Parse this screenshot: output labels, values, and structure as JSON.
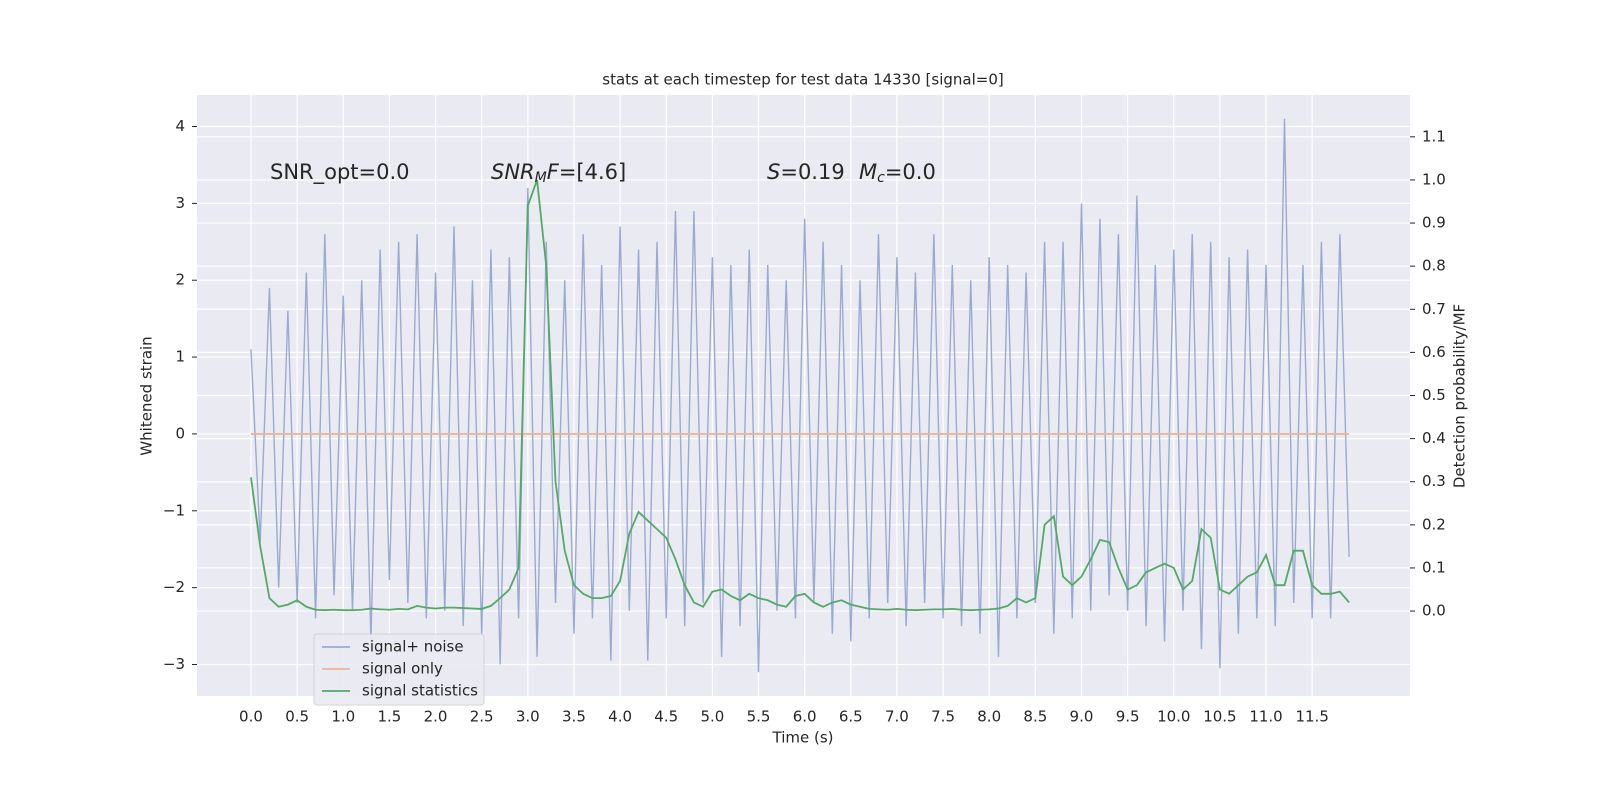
{
  "chart_data": {
    "type": "line",
    "title": "stats at each timestep for test data 14330 [signal=0]",
    "xlabel": "Time (s)",
    "ylabel": "Whitened strain",
    "y2label": "Detection probability/MF",
    "annotations": [
      {
        "parts": [
          {
            "text": "SNR_opt=0.0",
            "style": "normal"
          }
        ]
      },
      {
        "parts": [
          {
            "text": "SNR",
            "style": "italic"
          },
          {
            "text": "M",
            "style": "sub"
          },
          {
            "text": "F",
            "style": "italic"
          },
          {
            "text": "=[4.6]",
            "style": "normal"
          }
        ]
      },
      {
        "parts": [
          {
            "text": "S",
            "style": "italic"
          },
          {
            "text": "=0.19",
            "style": "normal"
          }
        ]
      },
      {
        "parts": [
          {
            "text": "M",
            "style": "italic"
          },
          {
            "text": "c",
            "style": "sub"
          },
          {
            "text": "=0.0",
            "style": "normal"
          }
        ]
      }
    ],
    "x": [
      0,
      0.1,
      0.2,
      0.3,
      0.4,
      0.5,
      0.6,
      0.7,
      0.8,
      0.9,
      1.0,
      1.1,
      1.2,
      1.3,
      1.4,
      1.5,
      1.6,
      1.7,
      1.8,
      1.9,
      2.0,
      2.1,
      2.2,
      2.3,
      2.4,
      2.5,
      2.6,
      2.7,
      2.8,
      2.9,
      3.0,
      3.1,
      3.2,
      3.3,
      3.4,
      3.5,
      3.6,
      3.7,
      3.8,
      3.9,
      4.0,
      4.1,
      4.2,
      4.3,
      4.4,
      4.5,
      4.6,
      4.7,
      4.8,
      4.9,
      5.0,
      5.1,
      5.2,
      5.3,
      5.4,
      5.5,
      5.6,
      5.7,
      5.8,
      5.9,
      6.0,
      6.1,
      6.2,
      6.3,
      6.4,
      6.5,
      6.6,
      6.7,
      6.8,
      6.9,
      7.0,
      7.1,
      7.2,
      7.3,
      7.4,
      7.5,
      7.6,
      7.7,
      7.8,
      7.9,
      8.0,
      8.1,
      8.2,
      8.3,
      8.4,
      8.5,
      8.6,
      8.7,
      8.8,
      8.9,
      9.0,
      9.1,
      9.2,
      9.3,
      9.4,
      9.5,
      9.6,
      9.7,
      9.8,
      9.9,
      10.0,
      10.1,
      10.2,
      10.3,
      10.4,
      10.5,
      10.6,
      10.7,
      10.8,
      10.9,
      11.0,
      11.1,
      11.2,
      11.3,
      11.4,
      11.5,
      11.6,
      11.7,
      11.8,
      11.9
    ],
    "series": [
      {
        "name": "signal+ noise",
        "color": "#9aabd1",
        "axis": "y",
        "values": [
          1.1,
          -1.4,
          1.9,
          -2.0,
          1.6,
          -2.2,
          2.1,
          -2.4,
          2.6,
          -2.1,
          1.8,
          -2.3,
          2.0,
          -2.7,
          2.4,
          -1.9,
          2.5,
          -2.2,
          2.6,
          -2.4,
          2.1,
          -2.3,
          2.7,
          -2.5,
          2.0,
          -2.6,
          2.4,
          -3.0,
          2.3,
          -2.4,
          3.2,
          -2.9,
          2.5,
          -2.2,
          2.0,
          -2.6,
          2.6,
          -2.4,
          2.2,
          -2.95,
          2.7,
          -2.3,
          2.4,
          -2.95,
          2.5,
          -2.4,
          2.9,
          -2.5,
          2.9,
          -2.2,
          2.3,
          -2.9,
          2.2,
          -2.5,
          2.4,
          -3.1,
          2.2,
          -2.3,
          2.0,
          -2.4,
          2.8,
          -2.2,
          2.5,
          -2.6,
          2.2,
          -2.7,
          2.0,
          -2.4,
          2.6,
          -2.2,
          2.3,
          -2.5,
          2.1,
          -2.2,
          2.6,
          -2.4,
          2.2,
          -2.5,
          2.0,
          -2.6,
          2.3,
          -2.9,
          2.2,
          -2.4,
          2.1,
          -2.2,
          2.5,
          -2.6,
          2.5,
          -2.4,
          3.0,
          -2.3,
          2.8,
          -2.1,
          2.6,
          -2.3,
          3.1,
          -2.5,
          2.2,
          -2.7,
          2.4,
          -2.3,
          2.6,
          -2.8,
          2.5,
          -3.05,
          2.3,
          -2.6,
          2.4,
          -2.4,
          2.2,
          -2.5,
          4.1,
          -2.2,
          2.2,
          -2.4,
          2.5,
          -2.4,
          2.6,
          -1.6
        ]
      },
      {
        "name": "signal only",
        "color": "#e9b59b",
        "axis": "y",
        "values": [
          0,
          0,
          0,
          0,
          0,
          0,
          0,
          0,
          0,
          0,
          0,
          0,
          0,
          0,
          0,
          0,
          0,
          0,
          0,
          0,
          0,
          0,
          0,
          0,
          0,
          0,
          0,
          0,
          0,
          0,
          0,
          0,
          0,
          0,
          0,
          0,
          0,
          0,
          0,
          0,
          0,
          0,
          0,
          0,
          0,
          0,
          0,
          0,
          0,
          0,
          0,
          0,
          0,
          0,
          0,
          0,
          0,
          0,
          0,
          0,
          0,
          0,
          0,
          0,
          0,
          0,
          0,
          0,
          0,
          0,
          0,
          0,
          0,
          0,
          0,
          0,
          0,
          0,
          0,
          0,
          0,
          0,
          0,
          0,
          0,
          0,
          0,
          0,
          0,
          0,
          0,
          0,
          0,
          0,
          0,
          0,
          0,
          0,
          0,
          0,
          0,
          0,
          0,
          0,
          0,
          0,
          0,
          0,
          0,
          0,
          0,
          0,
          0,
          0,
          0,
          0,
          0,
          0,
          0,
          0
        ]
      },
      {
        "name": "signal statistics",
        "color": "#55a868",
        "axis": "y2",
        "values": [
          0.31,
          0.15,
          0.03,
          0.01,
          0.015,
          0.025,
          0.01,
          0.003,
          0.002,
          0.003,
          0.002,
          0.002,
          0.003,
          0.006,
          0.004,
          0.003,
          0.005,
          0.004,
          0.012,
          0.008,
          0.006,
          0.008,
          0.008,
          0.007,
          0.006,
          0.005,
          0.012,
          0.03,
          0.05,
          0.1,
          0.94,
          1.0,
          0.8,
          0.3,
          0.14,
          0.06,
          0.04,
          0.03,
          0.03,
          0.035,
          0.07,
          0.18,
          0.23,
          0.21,
          0.19,
          0.17,
          0.12,
          0.06,
          0.02,
          0.01,
          0.045,
          0.05,
          0.035,
          0.025,
          0.04,
          0.03,
          0.025,
          0.015,
          0.01,
          0.035,
          0.04,
          0.02,
          0.01,
          0.02,
          0.025,
          0.015,
          0.01,
          0.005,
          0.004,
          0.003,
          0.005,
          0.003,
          0.002,
          0.003,
          0.004,
          0.004,
          0.005,
          0.003,
          0.002,
          0.003,
          0.004,
          0.006,
          0.012,
          0.03,
          0.02,
          0.03,
          0.2,
          0.22,
          0.08,
          0.06,
          0.08,
          0.12,
          0.165,
          0.16,
          0.1,
          0.05,
          0.06,
          0.09,
          0.1,
          0.11,
          0.1,
          0.05,
          0.07,
          0.19,
          0.17,
          0.05,
          0.04,
          0.06,
          0.08,
          0.09,
          0.13,
          0.06,
          0.06,
          0.14,
          0.14,
          0.06,
          0.04,
          0.04,
          0.045,
          0.02
        ]
      }
    ],
    "xlim": [
      -0.585,
      12.56
    ],
    "ylim": [
      -3.41,
      4.41
    ],
    "y2lim": [
      -0.197,
      1.197
    ],
    "xticks": [
      {
        "value": 0,
        "label": "0.0"
      },
      {
        "value": 0.5,
        "label": "0.5"
      },
      {
        "value": 1,
        "label": "1.0"
      },
      {
        "value": 1.5,
        "label": "1.5"
      },
      {
        "value": 2,
        "label": "2.0"
      },
      {
        "value": 2.5,
        "label": "2.5"
      },
      {
        "value": 3,
        "label": "3.0"
      },
      {
        "value": 3.5,
        "label": "3.5"
      },
      {
        "value": 4,
        "label": "4.0"
      },
      {
        "value": 4.5,
        "label": "4.5"
      },
      {
        "value": 5,
        "label": "5.0"
      },
      {
        "value": 5.5,
        "label": "5.5"
      },
      {
        "value": 6,
        "label": "6.0"
      },
      {
        "value": 6.5,
        "label": "6.5"
      },
      {
        "value": 7,
        "label": "7.0"
      },
      {
        "value": 7.5,
        "label": "7.5"
      },
      {
        "value": 8,
        "label": "8.0"
      },
      {
        "value": 8.5,
        "label": "8.5"
      },
      {
        "value": 9,
        "label": "9.0"
      },
      {
        "value": 9.5,
        "label": "9.5"
      },
      {
        "value": 10,
        "label": "10.0"
      },
      {
        "value": 10.5,
        "label": "10.5"
      },
      {
        "value": 11,
        "label": "11.0"
      },
      {
        "value": 11.5,
        "label": "11.5"
      }
    ],
    "yticks": [
      {
        "value": -3,
        "label": "−3"
      },
      {
        "value": -2,
        "label": "−2"
      },
      {
        "value": -1,
        "label": "−1"
      },
      0,
      1,
      2,
      3,
      4
    ],
    "y2ticks": [
      {
        "value": 0,
        "label": "0.0"
      },
      {
        "value": 0.1,
        "label": "0.1"
      },
      {
        "value": 0.2,
        "label": "0.2"
      },
      {
        "value": 0.3,
        "label": "0.3"
      },
      {
        "value": 0.4,
        "label": "0.4"
      },
      {
        "value": 0.5,
        "label": "0.5"
      },
      {
        "value": 0.6,
        "label": "0.6"
      },
      {
        "value": 0.7,
        "label": "0.7"
      },
      {
        "value": 0.8,
        "label": "0.8"
      },
      {
        "value": 0.9,
        "label": "0.9"
      },
      {
        "value": 1.0,
        "label": "1.0"
      },
      {
        "value": 1.1,
        "label": "1.1"
      }
    ],
    "grid": true,
    "background": "#eaeaf2",
    "legend": "lower left"
  }
}
